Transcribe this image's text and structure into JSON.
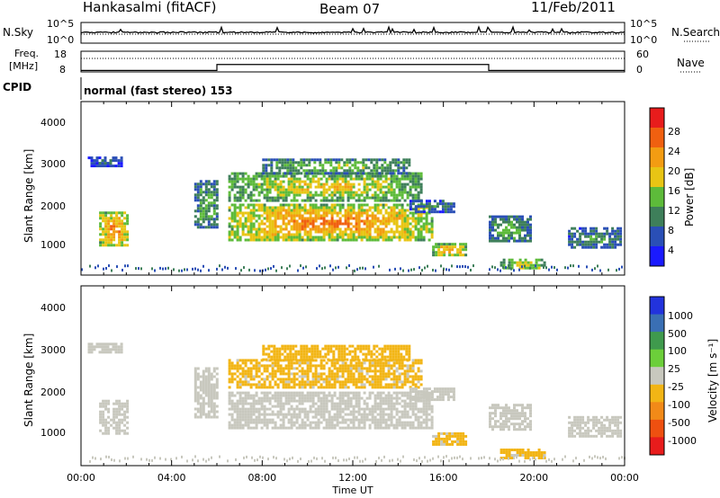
{
  "header": {
    "station": "Hankasalmi (fitACF)",
    "beam": "Beam 07",
    "date": "11/Feb/2011"
  },
  "noise_panel": {
    "left_label": "N.Sky",
    "left_ticks": [
      "10^5",
      "10^0"
    ],
    "right_label": "N.Search",
    "right_ticks": [
      "10^5",
      "10^0"
    ],
    "sky_level_log10": 0.9
  },
  "freq_panel": {
    "left_label_1": "Freq.",
    "left_label_2": "[MHz]",
    "left_ticks": [
      "18",
      "8"
    ],
    "right_label": "Nave",
    "right_ticks": [
      "60",
      "0"
    ],
    "freq_steps": [
      {
        "t0": 0.0,
        "t1": 6.0,
        "value": 8.7
      },
      {
        "t0": 6.0,
        "t1": 18.0,
        "value": 11.6
      },
      {
        "t0": 18.0,
        "t1": 24.0,
        "value": 8.7
      }
    ],
    "nave_level": 30
  },
  "cpid_panel": {
    "label": "CPID",
    "mode_text": "normal (fast stereo) 153"
  },
  "power_panel": {
    "ylabel": "Slant Range [km]",
    "yticks": [
      "1000",
      "2000",
      "3000",
      "4000"
    ],
    "colorbar_label": "Power [dB]",
    "colorbar_ticks": [
      "4",
      "8",
      "12",
      "16",
      "20",
      "24",
      "28"
    ],
    "colors": [
      "#1a1aff",
      "#2a4fb6",
      "#3e7f5a",
      "#5dbb3a",
      "#e8c514",
      "#f39c12",
      "#f06010",
      "#e81c1c"
    ]
  },
  "velocity_panel": {
    "ylabel": "Slant Range [km]",
    "yticks": [
      "1000",
      "2000",
      "3000",
      "4000"
    ],
    "colorbar_label": "Velocity [m s⁻¹]",
    "colorbar_ticks": [
      "1000",
      "500",
      "100",
      "25",
      "-25",
      "-100",
      "-500",
      "-1000"
    ],
    "colors": [
      "#2233dd",
      "#3a6fb4",
      "#3f9a4d",
      "#6ccf3a",
      "#c8c8be",
      "#f2b515",
      "#f28a18",
      "#ee5010",
      "#e81c1c"
    ]
  },
  "x_axis": {
    "label": "Time UT",
    "ticks": [
      "00:00",
      "04:00",
      "08:00",
      "12:00",
      "16:00",
      "20:00",
      "00:00"
    ]
  },
  "chart_data": {
    "type": "heatmap",
    "x_unit": "hours UT",
    "xlim": [
      0,
      24
    ],
    "ylim_km": [
      180,
      4600
    ],
    "power_clim_db": [
      0,
      32
    ],
    "velocity_clim": [
      -1200,
      1200
    ],
    "scatter_regions": [
      {
        "t0": 0.8,
        "t1": 2.0,
        "r0": 950,
        "r1": 1800,
        "power_db": 26,
        "velocity": 40
      },
      {
        "t0": 0.3,
        "t1": 1.8,
        "r0": 2950,
        "r1": 3200,
        "power_db": 8,
        "velocity": 0
      },
      {
        "t0": 5.0,
        "t1": 6.0,
        "r0": 1400,
        "r1": 2600,
        "power_db": 14,
        "velocity": 0
      },
      {
        "t0": 6.5,
        "t1": 15.0,
        "r0": 2100,
        "r1": 2800,
        "power_db": 20,
        "velocity": -200
      },
      {
        "t0": 6.5,
        "t1": 15.5,
        "r0": 1100,
        "r1": 2000,
        "power_db": 26,
        "velocity": 0
      },
      {
        "t0": 8.0,
        "t1": 14.5,
        "r0": 2800,
        "r1": 3150,
        "power_db": 16,
        "velocity": -300
      },
      {
        "t0": 15.5,
        "t1": 17.0,
        "r0": 700,
        "r1": 1000,
        "power_db": 24,
        "velocity": -200
      },
      {
        "t0": 14.5,
        "t1": 16.5,
        "r0": 1800,
        "r1": 2100,
        "power_db": 10,
        "velocity": 0
      },
      {
        "t0": 18.0,
        "t1": 19.8,
        "r0": 1050,
        "r1": 1700,
        "power_db": 14,
        "velocity": 0
      },
      {
        "t0": 18.5,
        "t1": 20.5,
        "r0": 350,
        "r1": 600,
        "power_db": 20,
        "velocity": -200
      },
      {
        "t0": 21.5,
        "t1": 23.8,
        "r0": 900,
        "r1": 1400,
        "power_db": 12,
        "velocity": 0
      }
    ]
  }
}
